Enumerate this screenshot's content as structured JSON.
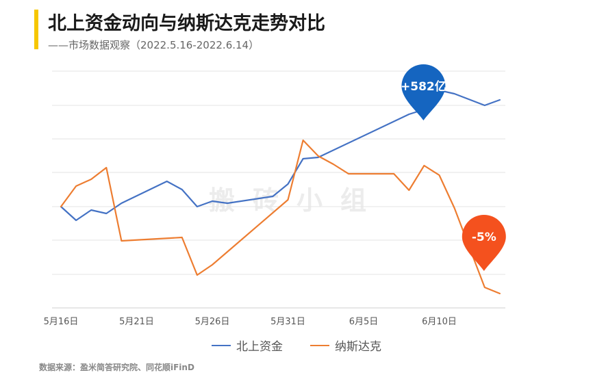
{
  "header": {
    "title": "北上资金动向与纳斯达克走势对比",
    "subtitle": "——市场数据观察（2022.5.16-2022.6.14）"
  },
  "footer": {
    "source": "数据来源：盈米简答研究院、同花顺iFinD"
  },
  "watermark": "搬砖小组",
  "colors": {
    "accent": "#f6c700",
    "north": "#4472c4",
    "nasdaq": "#ed7d31",
    "north_pin": "#1565c0",
    "nasdaq_pin": "#f4511e"
  },
  "chart_data": {
    "type": "line",
    "x_ticks": [
      "5月16日",
      "5月21日",
      "5月26日",
      "5月31日",
      "6月5日",
      "6月10日"
    ],
    "x": [
      0,
      1,
      2,
      3,
      4,
      5,
      6,
      7,
      8,
      9,
      10,
      11,
      12,
      13,
      14,
      15,
      16,
      17,
      18,
      19,
      20,
      21,
      22,
      23,
      24,
      25,
      26,
      27,
      28,
      29
    ],
    "grid": true,
    "legend_position": "bottom",
    "series": [
      {
        "name": "北上资金",
        "color": "#4472c4",
        "points": [
          [
            0,
            0
          ],
          [
            1,
            -20
          ],
          [
            2,
            -5
          ],
          [
            3,
            -10
          ],
          [
            4,
            5
          ],
          [
            7,
            37
          ],
          [
            8,
            25
          ],
          [
            9,
            0
          ],
          [
            10,
            8
          ],
          [
            11,
            5
          ],
          [
            14,
            15
          ],
          [
            15,
            33
          ],
          [
            16,
            70
          ],
          [
            17,
            72
          ],
          [
            23,
            135
          ],
          [
            24,
            142
          ],
          [
            25,
            170
          ],
          [
            26,
            165
          ],
          [
            28,
            148
          ],
          [
            29,
            156
          ]
        ]
      },
      {
        "name": "纳斯达克",
        "color": "#ed7d31",
        "points": [
          [
            0,
            0
          ],
          [
            1,
            30
          ],
          [
            2,
            40
          ],
          [
            3,
            57
          ],
          [
            4,
            -50
          ],
          [
            8,
            -45
          ],
          [
            9,
            -100
          ],
          [
            10,
            -85
          ],
          [
            11,
            -66
          ],
          [
            15,
            10
          ],
          [
            16,
            97
          ],
          [
            17,
            74
          ],
          [
            18,
            62
          ],
          [
            19,
            48
          ],
          [
            21,
            48
          ],
          [
            22,
            48
          ],
          [
            23,
            24
          ],
          [
            24,
            60
          ],
          [
            25,
            46
          ],
          [
            26,
            -2
          ],
          [
            28,
            -118
          ],
          [
            29,
            -127
          ]
        ]
      }
    ],
    "annotations": [
      {
        "series": "北上资金",
        "x": 24,
        "label": "+582亿"
      },
      {
        "series": "纳斯达克",
        "x": 28,
        "label": "-5%"
      }
    ]
  }
}
